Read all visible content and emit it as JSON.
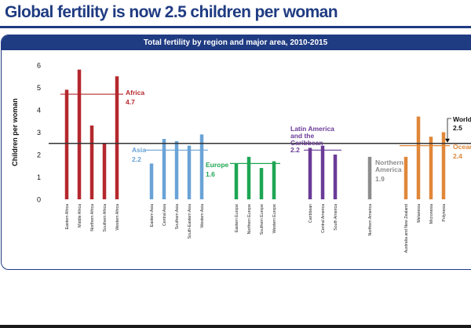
{
  "headline": "Global fertility is now 2.5 children per woman",
  "chart_data": {
    "type": "bar",
    "title": "Total fertility by region and major area, 2010-2015",
    "ylabel": "Children per woman",
    "ylim": [
      0,
      6
    ],
    "yticks": [
      "0",
      "1",
      "2",
      "3",
      "4",
      "5",
      "6"
    ],
    "groups": [
      {
        "name": "Africa",
        "average": 4.7,
        "average_label": "4.7",
        "color": "#b5282e",
        "categories": [
          "Eastern Africa",
          "Middle Africa",
          "Northern Africa",
          "Southern Africa",
          "Western Africa"
        ],
        "values": [
          4.9,
          5.8,
          3.3,
          2.5,
          5.5
        ]
      },
      {
        "name": "Asia",
        "average": 2.2,
        "average_label": "2.2",
        "color": "#6aa3d6",
        "categories": [
          "Eastern Asia",
          "Central Asia",
          "Southern Asia",
          "South-Eastern Asia",
          "Western Asia"
        ],
        "values": [
          1.6,
          2.7,
          2.6,
          2.4,
          2.9
        ]
      },
      {
        "name": "Europe",
        "average": 1.6,
        "average_label": "1.6",
        "color": "#1ea653",
        "categories": [
          "Eastern Europe",
          "Northern Europe",
          "Southern Europe",
          "Western Europe"
        ],
        "values": [
          1.6,
          1.9,
          1.4,
          1.7
        ]
      },
      {
        "name": "Latin America and the Caribbean",
        "average": 2.2,
        "average_label": "2.2",
        "color": "#6a3b97",
        "categories": [
          "Caribbean",
          "Central America",
          "South America"
        ],
        "values": [
          2.3,
          2.4,
          2.0
        ]
      },
      {
        "name": "Northern America",
        "average": 1.9,
        "average_label": "1.9",
        "color": "#8c8c8c",
        "categories": [
          "Northern America"
        ],
        "values": [
          1.9
        ]
      },
      {
        "name": "Oceania",
        "average": 2.4,
        "average_label": "2.4",
        "color": "#e0873a",
        "categories": [
          "Australia and New Zealand",
          "Melanesia",
          "Micronesia",
          "Polynesia"
        ],
        "values": [
          1.9,
          3.7,
          2.8,
          3.0
        ]
      }
    ],
    "reference": {
      "name": "World",
      "value": 2.5,
      "label": "2.5",
      "color": "#333333"
    }
  }
}
